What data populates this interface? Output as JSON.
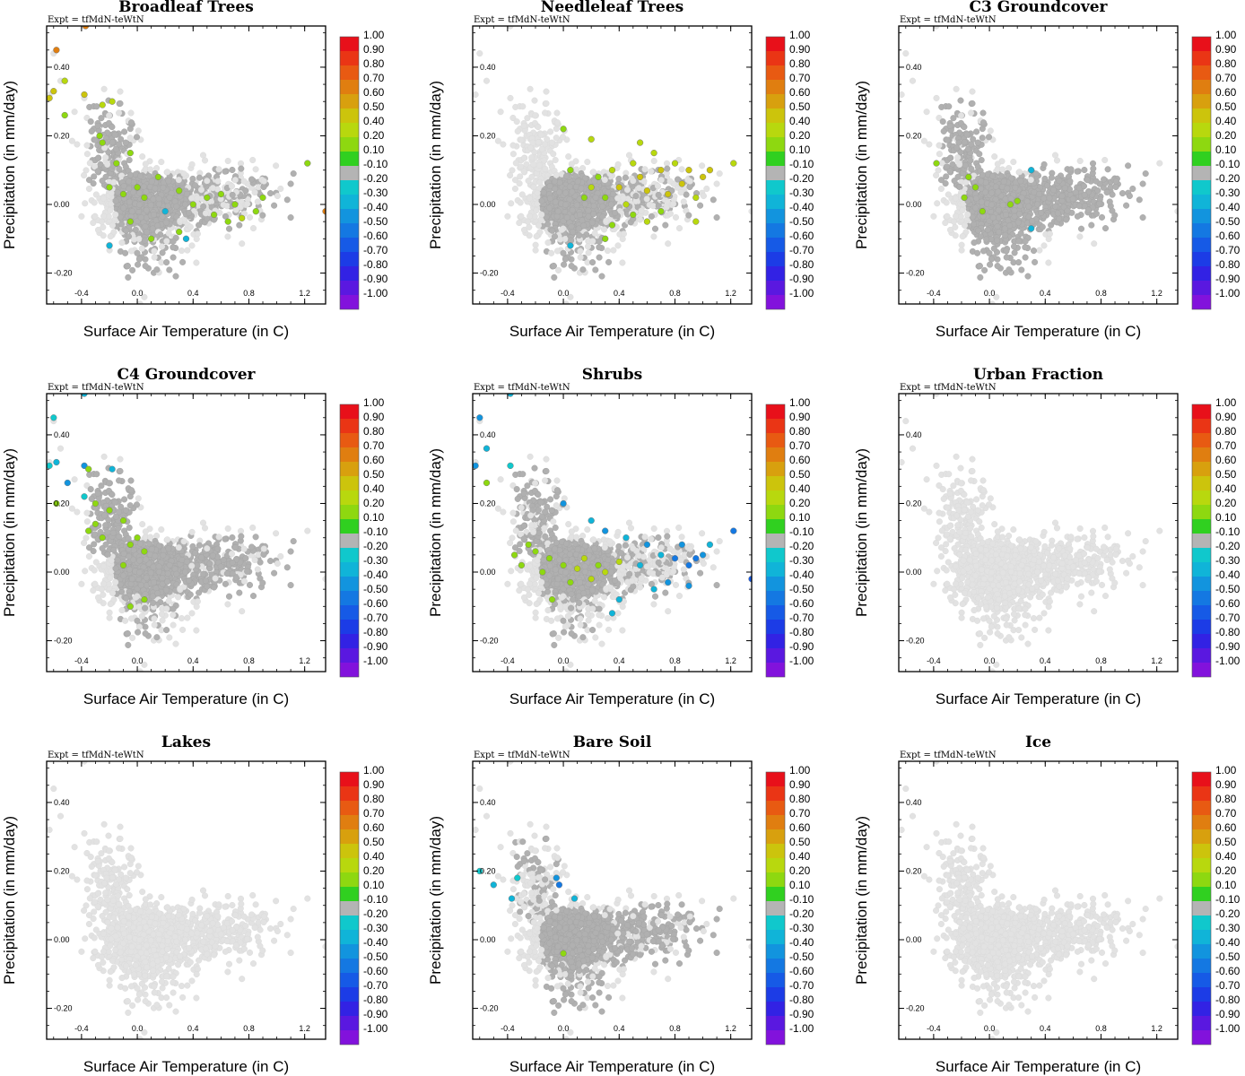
{
  "chart_data": {
    "type": "scatter",
    "expt_label": "Expt = tfMdN-teWtN",
    "xlabel": "Surface Air Temperature (in C)",
    "ylabel": "Precipitation (in mm/day)",
    "xlim": [
      -0.65,
      1.35
    ],
    "ylim": [
      -0.29,
      0.52
    ],
    "x_ticks": [
      -0.4,
      0.0,
      0.4,
      0.8,
      1.2
    ],
    "x_tick_labels": [
      "-0.4",
      "0.0",
      "0.4",
      "0.8",
      "1.2"
    ],
    "y_ticks": [
      -0.2,
      0.0,
      0.2,
      0.4
    ],
    "y_tick_labels": [
      "-0.20",
      "0.00",
      "0.20",
      "0.40"
    ],
    "colorbar": {
      "labels": [
        "1.00",
        "0.90",
        "0.80",
        "0.70",
        "0.60",
        "0.50",
        "0.40",
        "0.20",
        "0.10",
        "-0.10",
        "-0.20",
        "-0.30",
        "-0.40",
        "-0.50",
        "-0.60",
        "-0.70",
        "-0.80",
        "-0.90",
        "-1.00"
      ],
      "colors": [
        "#e8101a",
        "#ea3515",
        "#e85a12",
        "#e07e10",
        "#d8a00e",
        "#ccc40c",
        "#b8d80e",
        "#8ed810",
        "#30d020",
        "#b4b4b4",
        "#10c8cc",
        "#10b4d8",
        "#1294de",
        "#1478e2",
        "#165ae6",
        "#1c3ce6",
        "#3222e4",
        "#5a18e0",
        "#8212dc"
      ]
    },
    "panels": [
      {
        "title": "Broadleaf Trees",
        "pattern": "broadleaf",
        "points": [
          {
            "x": -0.63,
            "y": 0.31,
            "c": 0.5
          },
          {
            "x": -0.6,
            "y": 0.33,
            "c": 0.5
          },
          {
            "x": -0.58,
            "y": 0.45,
            "c": 0.7
          },
          {
            "x": -0.52,
            "y": 0.36,
            "c": 0.4
          },
          {
            "x": -0.52,
            "y": 0.26,
            "c": 0.3
          },
          {
            "x": -0.37,
            "y": 0.52,
            "c": 0.7
          },
          {
            "x": -0.38,
            "y": 0.32,
            "c": 0.5
          },
          {
            "x": -0.18,
            "y": 0.3,
            "c": 0.4
          },
          {
            "x": -0.25,
            "y": 0.29,
            "c": 0.4
          },
          {
            "x": -0.27,
            "y": 0.2,
            "c": 0.3
          },
          {
            "x": -0.25,
            "y": 0.18,
            "c": 0.2
          },
          {
            "x": -0.15,
            "y": 0.12,
            "c": 0.2
          },
          {
            "x": -0.05,
            "y": 0.15,
            "c": 0.3
          },
          {
            "x": -0.2,
            "y": 0.05,
            "c": 0.2
          },
          {
            "x": -0.1,
            "y": 0.03,
            "c": 0.2
          },
          {
            "x": 0.0,
            "y": 0.05,
            "c": 0.2
          },
          {
            "x": 0.05,
            "y": 0.02,
            "c": 0.2
          },
          {
            "x": 0.15,
            "y": 0.08,
            "c": 0.2
          },
          {
            "x": 0.3,
            "y": 0.04,
            "c": 0.3
          },
          {
            "x": 0.4,
            "y": 0.0,
            "c": 0.2
          },
          {
            "x": 0.5,
            "y": 0.02,
            "c": 0.3
          },
          {
            "x": 0.6,
            "y": 0.03,
            "c": 0.2
          },
          {
            "x": 0.7,
            "y": 0.0,
            "c": 0.3
          },
          {
            "x": 0.75,
            "y": -0.04,
            "c": 0.4
          },
          {
            "x": 0.85,
            "y": -0.02,
            "c": 0.3
          },
          {
            "x": 0.9,
            "y": 0.02,
            "c": 0.2
          },
          {
            "x": 0.55,
            "y": -0.03,
            "c": 0.2
          },
          {
            "x": 0.65,
            "y": -0.05,
            "c": 0.3
          },
          {
            "x": 0.3,
            "y": -0.08,
            "c": 0.2
          },
          {
            "x": -0.05,
            "y": -0.05,
            "c": 0.3
          },
          {
            "x": 0.1,
            "y": -0.1,
            "c": 0.2
          },
          {
            "x": 1.22,
            "y": 0.12,
            "c": 0.3
          },
          {
            "x": 1.35,
            "y": -0.02,
            "c": 0.7
          },
          {
            "x": -0.2,
            "y": -0.12,
            "c": -0.3
          },
          {
            "x": 0.35,
            "y": -0.1,
            "c": -0.3
          },
          {
            "x": 0.2,
            "y": -0.02,
            "c": -0.3
          }
        ]
      },
      {
        "title": "Needleleaf Trees",
        "pattern": "needleleaf",
        "points": [
          {
            "x": 0.2,
            "y": 0.05,
            "c": 0.4
          },
          {
            "x": 0.25,
            "y": 0.08,
            "c": 0.3
          },
          {
            "x": 0.3,
            "y": 0.02,
            "c": 0.3
          },
          {
            "x": 0.35,
            "y": 0.1,
            "c": 0.4
          },
          {
            "x": 0.4,
            "y": 0.05,
            "c": 0.5
          },
          {
            "x": 0.45,
            "y": 0.0,
            "c": 0.4
          },
          {
            "x": 0.5,
            "y": 0.12,
            "c": 0.4
          },
          {
            "x": 0.55,
            "y": 0.08,
            "c": 0.5
          },
          {
            "x": 0.6,
            "y": 0.04,
            "c": 0.5
          },
          {
            "x": 0.65,
            "y": 0.15,
            "c": 0.4
          },
          {
            "x": 0.7,
            "y": 0.1,
            "c": 0.5
          },
          {
            "x": 0.75,
            "y": 0.03,
            "c": 0.5
          },
          {
            "x": 0.8,
            "y": 0.12,
            "c": 0.4
          },
          {
            "x": 0.85,
            "y": 0.06,
            "c": 0.5
          },
          {
            "x": 0.9,
            "y": 0.1,
            "c": 0.5
          },
          {
            "x": 0.95,
            "y": 0.02,
            "c": 0.4
          },
          {
            "x": 1.0,
            "y": 0.08,
            "c": 0.5
          },
          {
            "x": 1.05,
            "y": 0.1,
            "c": 0.5
          },
          {
            "x": 0.7,
            "y": -0.02,
            "c": 0.3
          },
          {
            "x": 0.6,
            "y": -0.05,
            "c": 0.4
          },
          {
            "x": 0.5,
            "y": -0.03,
            "c": 0.3
          },
          {
            "x": 0.95,
            "y": -0.05,
            "c": 0.4
          },
          {
            "x": 0.35,
            "y": -0.06,
            "c": 0.3
          },
          {
            "x": 0.15,
            "y": 0.02,
            "c": 0.2
          },
          {
            "x": 0.05,
            "y": 0.1,
            "c": 0.2
          },
          {
            "x": 0.0,
            "y": 0.22,
            "c": 0.2
          },
          {
            "x": 0.2,
            "y": 0.19,
            "c": 0.4
          },
          {
            "x": 0.55,
            "y": 0.18,
            "c": 0.4
          },
          {
            "x": 1.22,
            "y": 0.12,
            "c": 0.4
          },
          {
            "x": 0.3,
            "y": -0.1,
            "c": 0.2
          },
          {
            "x": 0.05,
            "y": -0.12,
            "c": -0.3
          }
        ]
      },
      {
        "title": "C3 Groundcover",
        "pattern": "c3",
        "points": [
          {
            "x": -0.38,
            "y": 0.12,
            "c": 0.3
          },
          {
            "x": -0.15,
            "y": 0.08,
            "c": 0.2
          },
          {
            "x": -0.1,
            "y": 0.05,
            "c": 0.2
          },
          {
            "x": -0.18,
            "y": 0.02,
            "c": 0.3
          },
          {
            "x": -0.05,
            "y": -0.02,
            "c": 0.2
          },
          {
            "x": 0.15,
            "y": 0.0,
            "c": 0.2
          },
          {
            "x": 0.2,
            "y": 0.01,
            "c": 0.2
          },
          {
            "x": 0.3,
            "y": 0.1,
            "c": -0.3
          },
          {
            "x": 0.3,
            "y": -0.07,
            "c": -0.3
          }
        ]
      },
      {
        "title": "C4 Groundcover",
        "pattern": "c4",
        "points": [
          {
            "x": -0.6,
            "y": 0.45,
            "c": -0.2
          },
          {
            "x": -0.63,
            "y": 0.31,
            "c": -0.2
          },
          {
            "x": -0.58,
            "y": 0.32,
            "c": -0.3
          },
          {
            "x": -0.5,
            "y": 0.26,
            "c": -0.4
          },
          {
            "x": -0.58,
            "y": 0.2,
            "c": 0.2
          },
          {
            "x": -0.38,
            "y": 0.52,
            "c": -0.3
          },
          {
            "x": -0.38,
            "y": 0.31,
            "c": -0.4
          },
          {
            "x": -0.18,
            "y": 0.3,
            "c": -0.3
          },
          {
            "x": -0.38,
            "y": 0.22,
            "c": -0.2
          },
          {
            "x": -0.3,
            "y": 0.2,
            "c": 0.2
          },
          {
            "x": -0.2,
            "y": 0.18,
            "c": 0.2
          },
          {
            "x": -0.3,
            "y": 0.14,
            "c": 0.2
          },
          {
            "x": -0.25,
            "y": 0.1,
            "c": 0.3
          },
          {
            "x": -0.35,
            "y": 0.12,
            "c": 0.2
          },
          {
            "x": -0.1,
            "y": 0.15,
            "c": 0.3
          },
          {
            "x": -0.05,
            "y": 0.08,
            "c": 0.2
          },
          {
            "x": 0.0,
            "y": 0.1,
            "c": 0.2
          },
          {
            "x": 0.05,
            "y": 0.06,
            "c": 0.2
          },
          {
            "x": -0.1,
            "y": 0.02,
            "c": 0.2
          },
          {
            "x": 0.05,
            "y": -0.08,
            "c": 0.2
          },
          {
            "x": -0.05,
            "y": -0.1,
            "c": 0.3
          },
          {
            "x": -0.35,
            "y": 0.3,
            "c": 0.2
          }
        ]
      },
      {
        "title": "Shrubs",
        "pattern": "shrubs",
        "points": [
          {
            "x": -0.6,
            "y": 0.45,
            "c": -0.4
          },
          {
            "x": -0.63,
            "y": 0.31,
            "c": -0.4
          },
          {
            "x": -0.55,
            "y": 0.36,
            "c": -0.3
          },
          {
            "x": -0.55,
            "y": 0.26,
            "c": 0.2
          },
          {
            "x": -0.38,
            "y": 0.52,
            "c": -0.3
          },
          {
            "x": -0.38,
            "y": 0.31,
            "c": -0.2
          },
          {
            "x": 0.0,
            "y": 0.2,
            "c": -0.4
          },
          {
            "x": 0.2,
            "y": 0.15,
            "c": -0.3
          },
          {
            "x": 0.3,
            "y": 0.12,
            "c": -0.4
          },
          {
            "x": 0.45,
            "y": 0.1,
            "c": -0.3
          },
          {
            "x": 0.6,
            "y": 0.08,
            "c": -0.4
          },
          {
            "x": 0.7,
            "y": 0.05,
            "c": -0.3
          },
          {
            "x": 0.8,
            "y": 0.04,
            "c": -0.5
          },
          {
            "x": 0.85,
            "y": 0.08,
            "c": -0.4
          },
          {
            "x": 0.9,
            "y": 0.02,
            "c": -0.5
          },
          {
            "x": 0.95,
            "y": 0.04,
            "c": -0.5
          },
          {
            "x": 1.0,
            "y": 0.05,
            "c": -0.4
          },
          {
            "x": 1.05,
            "y": 0.08,
            "c": -0.3
          },
          {
            "x": 0.75,
            "y": -0.03,
            "c": -0.4
          },
          {
            "x": 0.65,
            "y": -0.05,
            "c": -0.3
          },
          {
            "x": 0.55,
            "y": 0.02,
            "c": -0.3
          },
          {
            "x": 0.9,
            "y": -0.04,
            "c": -0.4
          },
          {
            "x": 0.4,
            "y": -0.08,
            "c": -0.3
          },
          {
            "x": 1.22,
            "y": 0.12,
            "c": -0.5
          },
          {
            "x": 1.35,
            "y": -0.02,
            "c": -0.6
          },
          {
            "x": 0.35,
            "y": -0.12,
            "c": -0.3
          },
          {
            "x": -0.35,
            "y": 0.05,
            "c": 0.2
          },
          {
            "x": -0.3,
            "y": 0.02,
            "c": 0.3
          },
          {
            "x": -0.2,
            "y": 0.06,
            "c": 0.2
          },
          {
            "x": -0.15,
            "y": 0.0,
            "c": 0.3
          },
          {
            "x": -0.1,
            "y": 0.04,
            "c": 0.2
          },
          {
            "x": 0.0,
            "y": 0.02,
            "c": 0.3
          },
          {
            "x": 0.05,
            "y": -0.03,
            "c": 0.3
          },
          {
            "x": 0.1,
            "y": 0.01,
            "c": 0.4
          },
          {
            "x": 0.15,
            "y": 0.04,
            "c": 0.4
          },
          {
            "x": 0.2,
            "y": -0.02,
            "c": 0.4
          },
          {
            "x": 0.25,
            "y": 0.02,
            "c": 0.3
          },
          {
            "x": 0.3,
            "y": 0.0,
            "c": 0.4
          },
          {
            "x": 0.4,
            "y": 0.03,
            "c": 0.4
          },
          {
            "x": -0.08,
            "y": -0.08,
            "c": 0.2
          },
          {
            "x": -0.25,
            "y": 0.08,
            "c": 0.2
          }
        ]
      },
      {
        "title": "Urban Fraction",
        "pattern": "none",
        "points": []
      },
      {
        "title": "Lakes",
        "pattern": "none",
        "points": []
      },
      {
        "title": "Bare Soil",
        "pattern": "bare",
        "points": [
          {
            "x": -0.6,
            "y": 0.2,
            "c": -0.2
          },
          {
            "x": -0.5,
            "y": 0.16,
            "c": -0.3
          },
          {
            "x": -0.37,
            "y": 0.12,
            "c": -0.3
          },
          {
            "x": -0.33,
            "y": 0.18,
            "c": -0.2
          },
          {
            "x": -0.03,
            "y": 0.16,
            "c": -0.5
          },
          {
            "x": -0.05,
            "y": 0.18,
            "c": -0.4
          },
          {
            "x": 0.0,
            "y": -0.04,
            "c": 0.2
          },
          {
            "x": 0.08,
            "y": 0.12,
            "c": -0.3
          }
        ]
      },
      {
        "title": "Ice",
        "pattern": "none",
        "points": []
      }
    ]
  }
}
